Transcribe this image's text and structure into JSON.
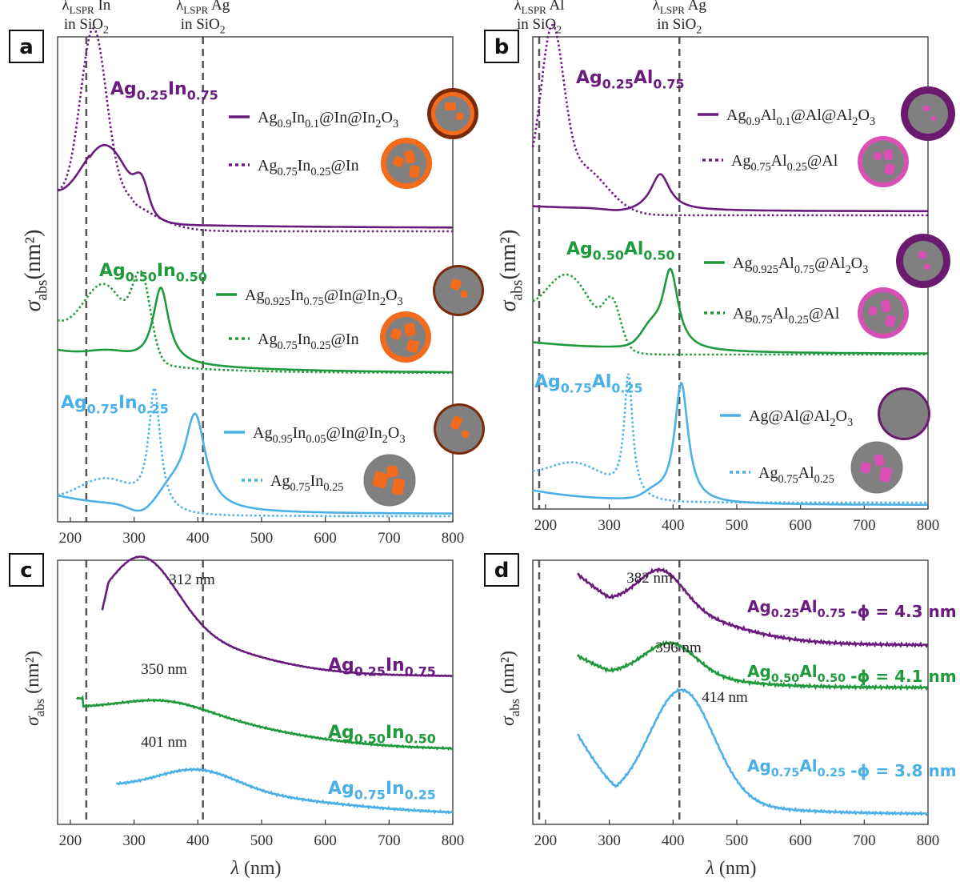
{
  "colors": {
    "purple": "#6a1b7e",
    "green": "#1e9a3c",
    "blue": "#4ab0e6",
    "dash": "#555555",
    "frame": "#333333"
  },
  "xticks": [
    200,
    300,
    400,
    500,
    600,
    700,
    800
  ],
  "xlabel": "λ (nm)",
  "ylabel_top": "σabs(nm²)",
  "ylabel_bottom": "σabs (nm²)",
  "chart_data": [
    {
      "id": "a",
      "type": "line",
      "xlim": [
        180,
        800
      ],
      "vlines": [
        {
          "x": 225,
          "label": [
            "λLSPR In",
            "in SiO2"
          ]
        },
        {
          "x": 408,
          "label": [
            "λLSPR Ag",
            "in SiO2"
          ]
        }
      ],
      "groups": [
        {
          "title": "Ag0.25In0.75",
          "color": "purple",
          "solid_label": "Ag0.9In0.1@In@In2O3",
          "dotted_label": "Ag0.75In0.25@In",
          "solid_peaks": [
            255,
            312
          ],
          "dotted_peak": 236
        },
        {
          "title": "Ag0.50In0.50",
          "color": "green",
          "solid_label": "Ag0.925In0.75@In@In2O3",
          "dotted_label": "Ag0.75In0.25@In",
          "solid_peak": 342,
          "dotted_peaks": [
            255,
            312
          ]
        },
        {
          "title": "Ag0.75In0.25",
          "color": "blue",
          "solid_label": "Ag0.95In0.05@In@In2O3",
          "dotted_label": "Ag0.75In0.25",
          "solid_peak": 396,
          "dotted_peak": 332
        }
      ]
    },
    {
      "id": "b",
      "type": "line",
      "xlim": [
        180,
        800
      ],
      "vlines": [
        {
          "x": 190,
          "label": [
            "λLSPR Al",
            "in SiO2"
          ]
        },
        {
          "x": 410,
          "label": [
            "λLSPR Ag",
            "in SiO2"
          ]
        }
      ],
      "groups": [
        {
          "title": "Ag0.25Al0.75",
          "color": "purple",
          "solid_label": "Ag0.9Al0.1@Al@Al2O3",
          "dotted_label": "Ag0.75Al0.25@Al",
          "solid_peak": 380,
          "dotted_peak": 210
        },
        {
          "title": "Ag0.50Al0.50",
          "color": "green",
          "solid_label": "Ag0.925Al0.75@Al2O3",
          "dotted_label": "Ag0.75Al0.25@Al",
          "solid_peak": 396,
          "dotted_peaks": [
            235,
            305
          ]
        },
        {
          "title": "Ag0.75Al0.25",
          "color": "blue",
          "solid_label": "Ag@Al@Al2O3",
          "dotted_label": "Ag0.75Al0.25",
          "solid_peak": 413,
          "dotted_peak": 330
        }
      ]
    },
    {
      "id": "c",
      "type": "line",
      "xlim": [
        180,
        800
      ],
      "vlines": [
        {
          "x": 225
        },
        {
          "x": 408
        }
      ],
      "series": [
        {
          "name": "Ag0.25In0.75",
          "color": "purple",
          "peak": 312,
          "peak_label": "312 nm"
        },
        {
          "name": "Ag0.50In0.50",
          "color": "green",
          "peak": 350,
          "peak_label": "350 nm"
        },
        {
          "name": "Ag0.75In0.25",
          "color": "blue",
          "peak": 401,
          "peak_label": "401 nm"
        }
      ]
    },
    {
      "id": "d",
      "type": "line",
      "xlim": [
        180,
        800
      ],
      "vlines": [
        {
          "x": 190
        },
        {
          "x": 410
        }
      ],
      "series": [
        {
          "name": "Ag0.25Al0.75",
          "diameter": "-ϕ = 4.3 nm",
          "color": "purple",
          "peak": 382,
          "peak_label": "382 nm"
        },
        {
          "name": "Ag0.50Al0.50",
          "diameter": "-ϕ = 4.1 nm",
          "color": "green",
          "peak": 396,
          "peak_label": "396 nm"
        },
        {
          "name": "Ag0.75Al0.25",
          "diameter": "-ϕ = 3.8 nm",
          "color": "blue",
          "peak": 414,
          "peak_label": "414 nm"
        }
      ]
    }
  ]
}
